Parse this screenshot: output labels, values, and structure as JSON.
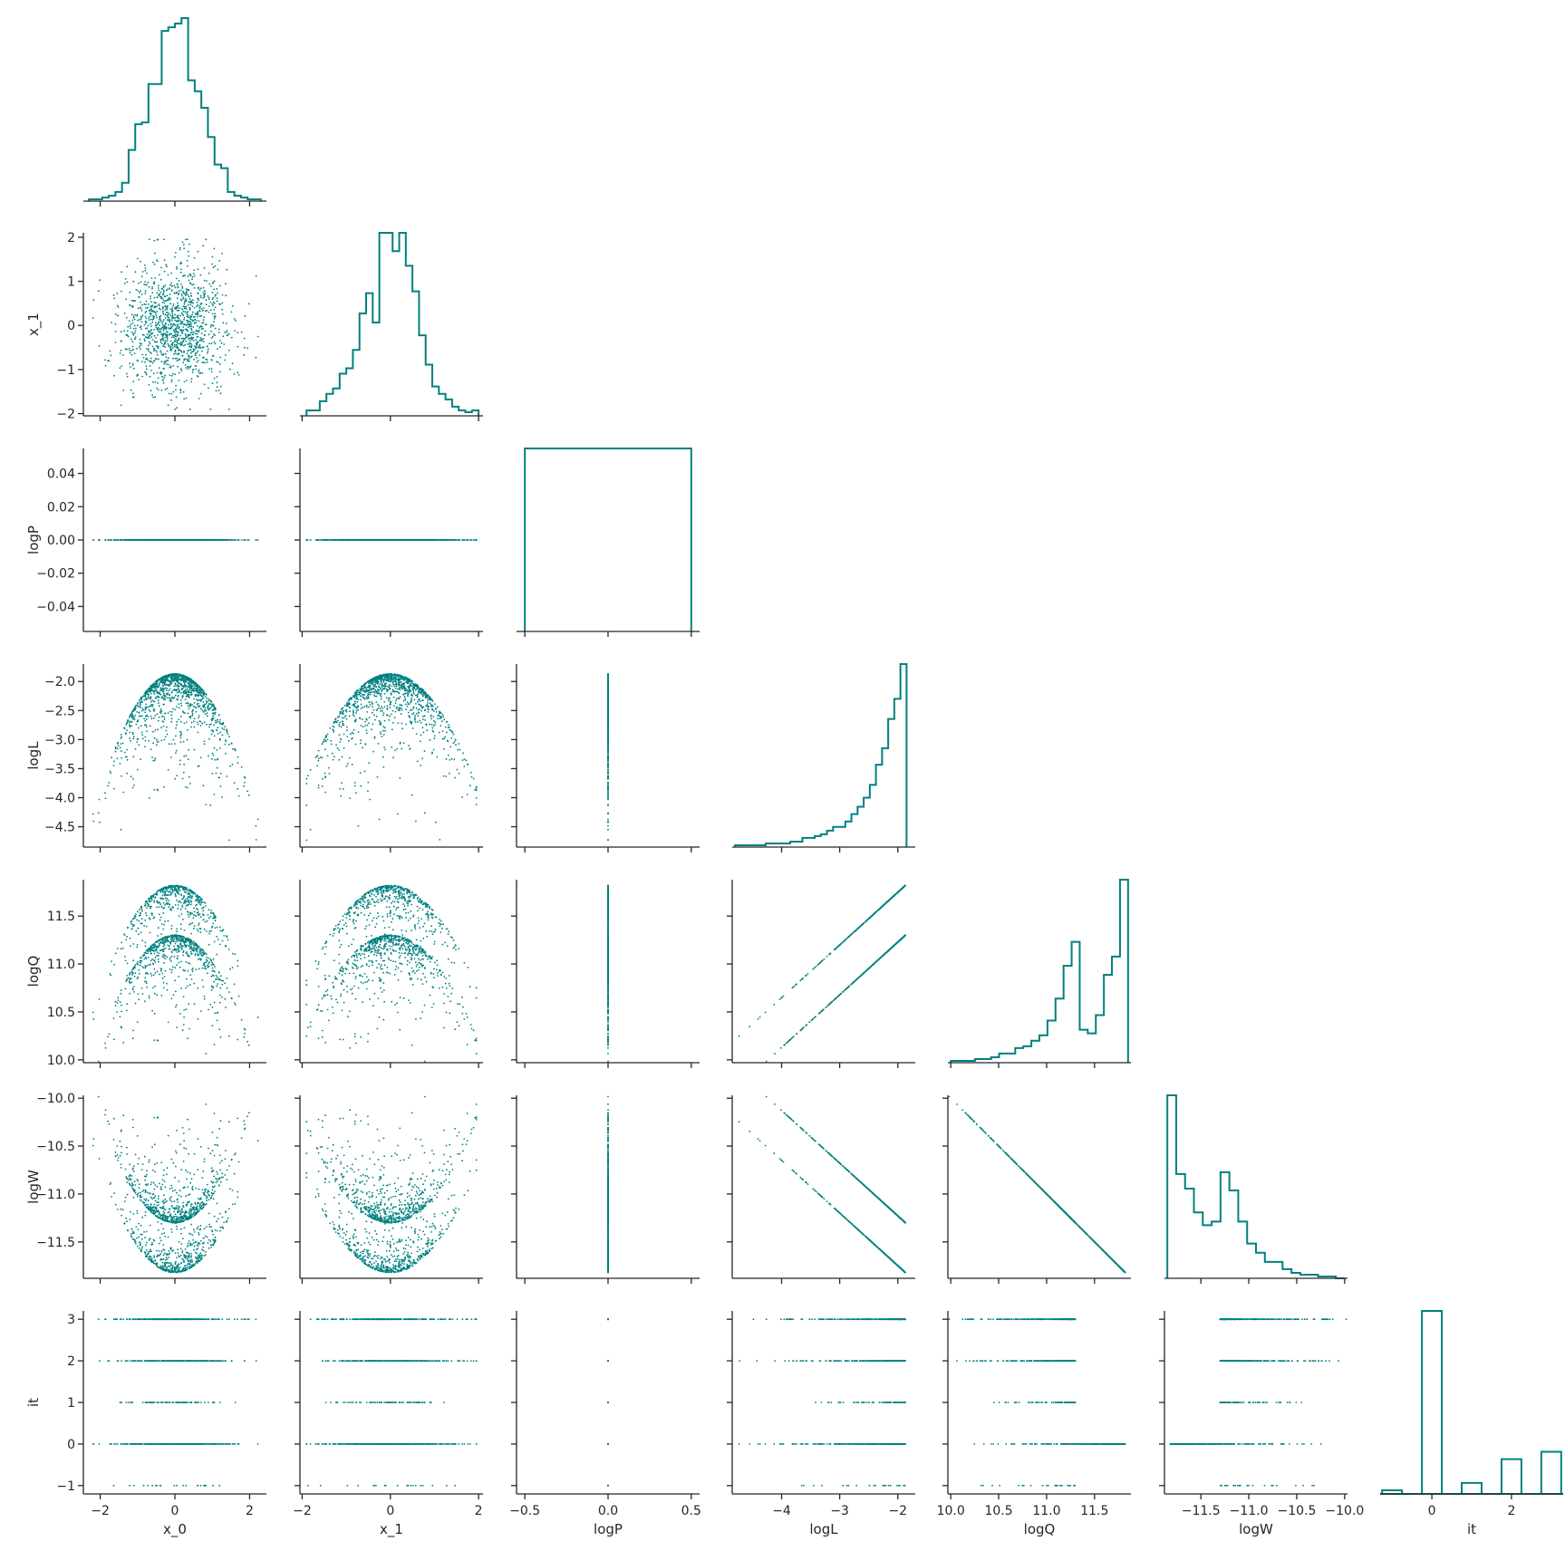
{
  "chart_data": {
    "type": "scatter",
    "layout": "corner-plot (pairplot, lower triangle with histograms on diagonal)",
    "color": "#008080",
    "variables": [
      "x_0",
      "x_1",
      "logP",
      "logL",
      "logQ",
      "logW",
      "it"
    ],
    "axes": {
      "x_0": {
        "range": [
          -2.45,
          2.45
        ],
        "ticks": [
          -2,
          0,
          2
        ],
        "tick_labels": [
          "−2",
          "0",
          "2"
        ]
      },
      "x_1": {
        "range": [
          -2.05,
          2.1
        ],
        "ticks": [
          -2,
          -1,
          0,
          1,
          2
        ],
        "tick_labels": [
          "−2",
          "−1",
          "0",
          "1",
          "2"
        ],
        "xticks": [
          -2,
          0,
          2
        ],
        "xtick_labels": [
          "−2",
          "0",
          "2"
        ]
      },
      "logP": {
        "range": [
          -0.055,
          0.055
        ],
        "ticks": [
          -0.04,
          -0.02,
          0.0,
          0.02,
          0.04
        ],
        "tick_labels": [
          "−0.04",
          "−0.02",
          "0.00",
          "0.02",
          "0.04"
        ],
        "xrange": [
          -0.55,
          0.55
        ],
        "xticks": [
          -0.5,
          0,
          0.5
        ],
        "xtick_labels": [
          "−0.5",
          "0.0",
          "0.5"
        ]
      },
      "logL": {
        "range": [
          -4.85,
          -1.7
        ],
        "ticks": [
          -4.5,
          -4.0,
          -3.5,
          -3.0,
          -2.5,
          -2.0
        ],
        "tick_labels": [
          "−4.5",
          "−4.0",
          "−3.5",
          "−3.0",
          "−2.5",
          "−2.0"
        ],
        "xticks": [
          -4,
          -3,
          -2
        ],
        "xtick_labels": [
          "−4",
          "−3",
          "−2"
        ]
      },
      "logQ": {
        "range": [
          9.97,
          11.88
        ],
        "ticks": [
          10.0,
          10.5,
          11.0,
          11.5
        ],
        "tick_labels": [
          "10.0",
          "10.5",
          "11.0",
          "11.5"
        ],
        "xticks": [
          10.0,
          10.5,
          11.0,
          11.5
        ],
        "xtick_labels": [
          "10.0",
          "10.5",
          "11.0",
          "11.5"
        ]
      },
      "logW": {
        "range": [
          -11.88,
          -9.97
        ],
        "ticks": [
          -11.5,
          -11.0,
          -10.5,
          -10.0
        ],
        "tick_labels": [
          "−11.5",
          "−11.0",
          "−10.5",
          "−10.0"
        ],
        "xticks": [
          -11.5,
          -11.0,
          -10.5,
          -10.0
        ],
        "xtick_labels": [
          "−11.5",
          "−11.0",
          "−10.5",
          "−10.0"
        ]
      },
      "it": {
        "range": [
          -1.2,
          3.2
        ],
        "ticks": [
          -1,
          0,
          1,
          2,
          3
        ],
        "tick_labels": [
          "−1",
          "0",
          "1",
          "2",
          "3"
        ],
        "xrange": [
          -1.3,
          3.3
        ],
        "xticks": [
          0,
          2
        ],
        "xtick_labels": [
          "0",
          "2"
        ]
      }
    },
    "histograms": {
      "x_0": {
        "range": [
          -2.3,
          2.3
        ],
        "counts": [
          1,
          1,
          2,
          3,
          5,
          10,
          28,
          42,
          43,
          64,
          64,
          93,
          95,
          97,
          100,
          66,
          60,
          51,
          35,
          20,
          18,
          5,
          3,
          2,
          1,
          1
        ]
      },
      "x_1": {
        "range": [
          -1.9,
          2.0
        ],
        "counts": [
          3,
          3,
          8,
          12,
          15,
          23,
          26,
          36,
          56,
          67,
          51,
          100,
          100,
          90,
          100,
          82,
          68,
          44,
          28,
          16,
          12,
          9,
          5,
          3,
          2,
          3
        ]
      },
      "logP": {
        "range": [
          -0.5,
          0.5
        ],
        "counts": [
          100
        ]
      },
      "logL": {
        "range": [
          -4.8,
          -1.85
        ],
        "counts": [
          1,
          1,
          1,
          1,
          1,
          2,
          2,
          2,
          2,
          3,
          3,
          5,
          5,
          6,
          7,
          9,
          11,
          11,
          14,
          18,
          22,
          27,
          34,
          45,
          54,
          70,
          81,
          100
        ]
      },
      "logQ": {
        "range": [
          10.0,
          11.85
        ],
        "counts": [
          1,
          1,
          1,
          2,
          2,
          3,
          5,
          5,
          8,
          9,
          12,
          15,
          23,
          35,
          53,
          66,
          18,
          16,
          26,
          48,
          58,
          100
        ]
      },
      "logW": {
        "range": [
          -11.85,
          -10.0
        ],
        "counts": [
          100,
          57,
          49,
          36,
          29,
          31,
          58,
          48,
          31,
          19,
          14,
          9,
          9,
          5,
          3,
          2,
          2,
          1,
          1,
          0
        ]
      },
      "it": {
        "bins": [
          [
            -1.25,
            -0.75,
            2
          ],
          [
            -0.25,
            0.25,
            100
          ],
          [
            0.75,
            1.25,
            6
          ],
          [
            1.75,
            2.25,
            19
          ],
          [
            2.75,
            3.25,
            23
          ]
        ]
      }
    }
  }
}
